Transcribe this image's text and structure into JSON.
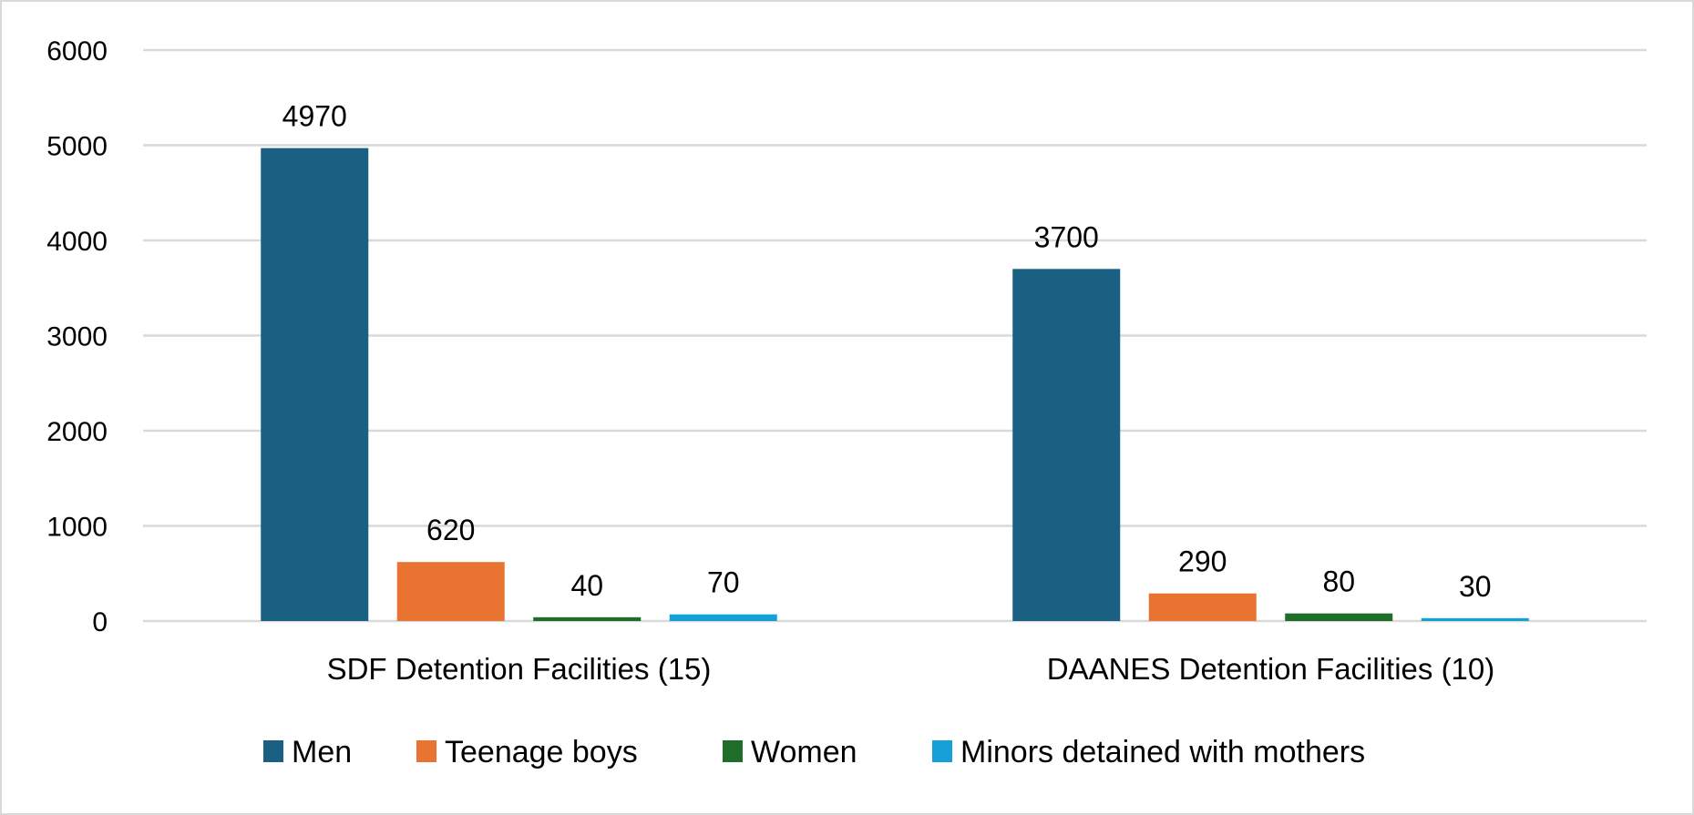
{
  "chart_data": {
    "type": "bar",
    "title": "",
    "xlabel": "",
    "ylabel": "",
    "categories": [
      "SDF Detention Facilities (15)",
      "DAANES Detention Facilities (10)"
    ],
    "series": [
      {
        "name": "Men",
        "color": "#1a6082",
        "values": [
          4970,
          3700
        ]
      },
      {
        "name": "Teenage boys",
        "color": "#e97432",
        "values": [
          620,
          290
        ]
      },
      {
        "name": "Women",
        "color": "#1e6e2a",
        "values": [
          40,
          80
        ]
      },
      {
        "name": "Minors detained with mothers",
        "color": "#15a0d8",
        "values": [
          70,
          30
        ]
      }
    ],
    "ylim": [
      0,
      6000
    ],
    "yticks": [
      0,
      1000,
      2000,
      3000,
      4000,
      5000,
      6000
    ],
    "grid": true,
    "gridline_color": "#d9d9d9",
    "legend_position": "bottom",
    "data_labels": true
  }
}
